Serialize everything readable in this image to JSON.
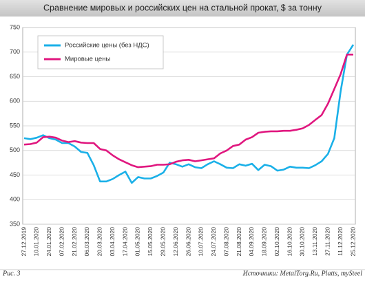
{
  "chart_data": {
    "type": "line",
    "title": "Сравнение мировых и российских цен на стальной прокат, $ за тонну",
    "figure_label": "Рис. 3",
    "source": "Источники: MetalTorg.Ru, Platts, mySteel",
    "categories": [
      "27.12.2019",
      null,
      "10.01.2020",
      null,
      "24.01.2020",
      null,
      "07.02.2020",
      null,
      "21.02.2020",
      null,
      "06.03.2020",
      null,
      "20.03.2020",
      null,
      "03.04.2020",
      null,
      "17.04.2020",
      null,
      "01.05.2020",
      null,
      "15.05.2020",
      null,
      "29.05.2020",
      null,
      "12.06.2020",
      null,
      "26.06.2020",
      null,
      "10.07.2020",
      null,
      "24.07.2020",
      null,
      "07.08.2020",
      null,
      "21.08.2020",
      null,
      "04.09.2020",
      null,
      "18.09.2020",
      null,
      "02.10.2020",
      null,
      "16.10.2020",
      null,
      "30.10.2020",
      null,
      "13.11.2020",
      null,
      "27.11.2020",
      null,
      "11.12.2020",
      null,
      "25.12.2020"
    ],
    "series": [
      {
        "name": "Российские цены (без НДС)",
        "color": "#1ab0e8",
        "values": [
          525,
          523,
          526,
          531,
          525,
          522,
          515,
          515,
          508,
          497,
          495,
          470,
          437,
          437,
          442,
          450,
          457,
          434,
          446,
          443,
          443,
          448,
          455,
          475,
          472,
          467,
          472,
          466,
          464,
          472,
          478,
          472,
          465,
          464,
          472,
          469,
          473,
          460,
          471,
          468,
          459,
          461,
          467,
          465,
          465,
          464,
          470,
          478,
          493,
          525,
          620,
          695,
          715
        ]
      },
      {
        "name": "Мировые цены",
        "color": "#e0177f",
        "values": [
          512,
          513,
          516,
          527,
          528,
          526,
          520,
          517,
          519,
          516,
          515,
          515,
          503,
          500,
          490,
          482,
          476,
          470,
          466,
          467,
          468,
          471,
          471,
          472,
          477,
          480,
          481,
          478,
          480,
          482,
          484,
          494,
          500,
          509,
          512,
          522,
          527,
          536,
          538,
          539,
          539,
          540,
          540,
          542,
          545,
          552,
          562,
          572,
          595,
          625,
          655,
          695,
          695
        ]
      }
    ],
    "ylim": [
      350,
      750
    ],
    "yticks": [
      350,
      400,
      450,
      500,
      550,
      600,
      650,
      700,
      750
    ],
    "grid": true,
    "legend": "upper left"
  }
}
